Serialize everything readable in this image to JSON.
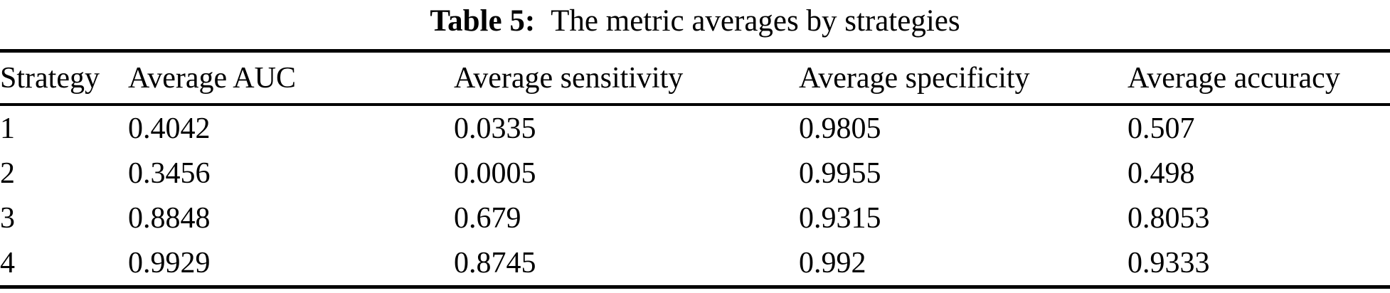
{
  "caption": {
    "label": "Table 5:",
    "text": "The metric averages by strategies"
  },
  "columns": [
    "Strategy",
    "Average AUC",
    "Average sensitivity",
    "Average specificity",
    "Average accuracy"
  ],
  "rows": [
    [
      "1",
      "0.4042",
      "0.0335",
      "0.9805",
      "0.507"
    ],
    [
      "2",
      "0.3456",
      "0.0005",
      "0.9955",
      "0.498"
    ],
    [
      "3",
      "0.8848",
      "0.679",
      "0.9315",
      "0.8053"
    ],
    [
      "4",
      "0.9929",
      "0.8745",
      "0.992",
      "0.9333"
    ]
  ],
  "colors": {
    "text": "#000000",
    "background": "#ffffff",
    "rule": "#000000"
  }
}
